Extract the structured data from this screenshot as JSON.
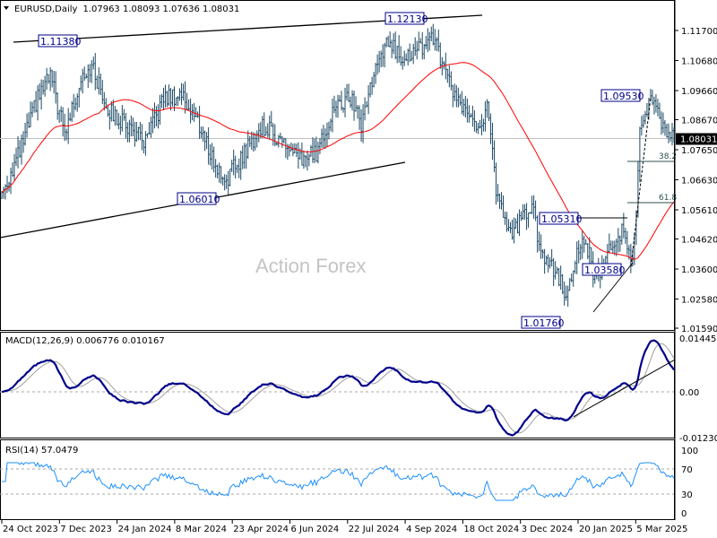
{
  "header": {
    "symbol": "EURUSD,Daily",
    "ohlc": "1.07963 1.08093 1.07636 1.08031"
  },
  "watermark": "Action Forex",
  "colors": {
    "bars": "#1d4a66",
    "ma": "#ff0000",
    "macd": "#00008b",
    "signal": "#a0a0a0",
    "rsi": "#1e90ff",
    "label": "#00008b"
  },
  "chart_data": {
    "type": "line",
    "title": "EURUSD,Daily",
    "price_axis": {
      "ticks": [
        "1.11700",
        "1.10680",
        "1.09660",
        "1.08670",
        "1.07650",
        "1.06630",
        "1.05610",
        "1.04620",
        "1.03600",
        "1.02580",
        "1.01590"
      ],
      "range": [
        1.0159,
        1.117
      ],
      "current": "1.08031"
    },
    "date_ticks": [
      "24 Oct 2023",
      "7 Dec 2023",
      "24 Jan 2024",
      "8 Mar 2024",
      "23 Apr 2024",
      "6 Jun 2024",
      "22 Jul 2024",
      "4 Sep 2024",
      "18 Oct 2024",
      "3 Dec 2024",
      "20 Jan 2025",
      "5 Mar 2025"
    ],
    "sessions": 375,
    "close_anchors": [
      [
        0,
        1.0619
      ],
      [
        10,
        1.0756
      ],
      [
        20,
        1.0939
      ],
      [
        27,
        1.1015
      ],
      [
        35,
        1.0817
      ],
      [
        45,
        1.103
      ],
      [
        50,
        1.1045
      ],
      [
        60,
        1.0893
      ],
      [
        70,
        1.0847
      ],
      [
        80,
        1.0786
      ],
      [
        90,
        1.0939
      ],
      [
        100,
        1.0954
      ],
      [
        110,
        1.0847
      ],
      [
        120,
        1.0695
      ],
      [
        125,
        1.0665
      ],
      [
        135,
        1.0756
      ],
      [
        145,
        1.0847
      ],
      [
        155,
        1.0802
      ],
      [
        165,
        1.0725
      ],
      [
        175,
        1.0756
      ],
      [
        185,
        1.0908
      ],
      [
        195,
        1.0939
      ],
      [
        200,
        1.0847
      ],
      [
        205,
        1.0984
      ],
      [
        215,
        1.1136
      ],
      [
        220,
        1.1091
      ],
      [
        230,
        1.1091
      ],
      [
        240,
        1.1152
      ],
      [
        245,
        1.1045
      ],
      [
        255,
        1.0908
      ],
      [
        265,
        1.0847
      ],
      [
        270,
        1.0908
      ],
      [
        275,
        1.0634
      ],
      [
        280,
        1.0512
      ],
      [
        285,
        1.0482
      ],
      [
        290,
        1.0543
      ],
      [
        295,
        1.0573
      ],
      [
        300,
        1.0421
      ],
      [
        310,
        1.033
      ],
      [
        315,
        1.0269
      ],
      [
        320,
        1.0421
      ],
      [
        325,
        1.0451
      ],
      [
        330,
        1.033
      ],
      [
        335,
        1.036
      ],
      [
        340,
        1.0451
      ],
      [
        345,
        1.0482
      ],
      [
        350,
        1.039
      ],
      [
        352,
        1.0451
      ],
      [
        355,
        1.0817
      ],
      [
        360,
        1.0908
      ],
      [
        363,
        1.0939
      ],
      [
        368,
        1.0847
      ],
      [
        374,
        1.0803
      ]
    ],
    "annotations": [
      {
        "text": "1.11380"
      },
      {
        "text": "1.12130"
      },
      {
        "text": "1.06010"
      },
      {
        "text": "1.09530"
      },
      {
        "text": "1.05310"
      },
      {
        "text": "1.03580"
      },
      {
        "text": "1.01760"
      }
    ],
    "fib_levels": [
      "38.2",
      "61.8"
    ],
    "macd": {
      "label": "MACD(12,26,9) 0.006776 0.010167",
      "ticks": [
        "0.014459",
        "0.00",
        "-0.012303"
      ],
      "range": [
        -0.012303,
        0.014459
      ]
    },
    "rsi": {
      "label": "RSI(14) 57.0479",
      "ticks": [
        "100",
        "70",
        "30",
        "0"
      ],
      "levels": [
        70,
        30
      ]
    }
  }
}
